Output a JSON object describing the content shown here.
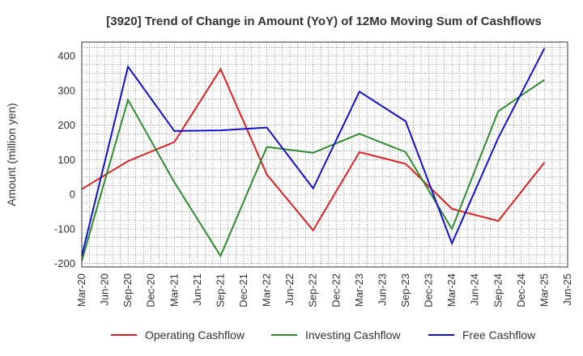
{
  "chart_data": {
    "type": "line",
    "title": "[3920]  Trend of Change in Amount (YoY) of 12Mo Moving Sum of Cashflows",
    "xlabel": "",
    "ylabel": "Amount (million yen)",
    "ylim": [
      -210,
      440
    ],
    "yticks": [
      -200,
      -100,
      0,
      100,
      200,
      300,
      400
    ],
    "grid": true,
    "legend_position": "bottom",
    "categories": [
      "Mar-20",
      "Jun-20",
      "Sep-20",
      "Dec-20",
      "Mar-21",
      "Jun-21",
      "Sep-21",
      "Dec-21",
      "Mar-22",
      "Jun-22",
      "Sep-22",
      "Dec-22",
      "Mar-23",
      "Jun-23",
      "Sep-23",
      "Dec-23",
      "Mar-24",
      "Jun-24",
      "Sep-24",
      "Dec-24",
      "Mar-25",
      "Jun-25"
    ],
    "series": [
      {
        "name": "Operating Cashflow",
        "color": "#e02020",
        "points": [
          {
            "x": "Mar-20",
            "y": 15
          },
          {
            "x": "Sep-20",
            "y": 96
          },
          {
            "x": "Mar-21",
            "y": 151
          },
          {
            "x": "Sep-21",
            "y": 362
          },
          {
            "x": "Mar-22",
            "y": 57
          },
          {
            "x": "Sep-22",
            "y": -104
          },
          {
            "x": "Mar-23",
            "y": 122
          },
          {
            "x": "Sep-23",
            "y": 88
          },
          {
            "x": "Mar-24",
            "y": -42
          },
          {
            "x": "Sep-24",
            "y": -77
          },
          {
            "x": "Mar-25",
            "y": 92
          }
        ]
      },
      {
        "name": "Investing Cashflow",
        "color": "#2e8b2e",
        "points": [
          {
            "x": "Mar-20",
            "y": -192
          },
          {
            "x": "Sep-20",
            "y": 273
          },
          {
            "x": "Mar-21",
            "y": 35
          },
          {
            "x": "Sep-21",
            "y": -178
          },
          {
            "x": "Mar-22",
            "y": 137
          },
          {
            "x": "Sep-22",
            "y": 120
          },
          {
            "x": "Mar-23",
            "y": 175
          },
          {
            "x": "Sep-23",
            "y": 122
          },
          {
            "x": "Mar-24",
            "y": -100
          },
          {
            "x": "Sep-24",
            "y": 240
          },
          {
            "x": "Mar-25",
            "y": 331
          }
        ]
      },
      {
        "name": "Free Cashflow",
        "color": "#1010d0",
        "points": [
          {
            "x": "Mar-20",
            "y": -178
          },
          {
            "x": "Sep-20",
            "y": 369
          },
          {
            "x": "Mar-21",
            "y": 183
          },
          {
            "x": "Sep-21",
            "y": 185
          },
          {
            "x": "Mar-22",
            "y": 193
          },
          {
            "x": "Sep-22",
            "y": 17
          },
          {
            "x": "Mar-23",
            "y": 297
          },
          {
            "x": "Sep-23",
            "y": 211
          },
          {
            "x": "Mar-24",
            "y": -142
          },
          {
            "x": "Sep-24",
            "y": 163
          },
          {
            "x": "Mar-25",
            "y": 422
          }
        ]
      }
    ]
  }
}
